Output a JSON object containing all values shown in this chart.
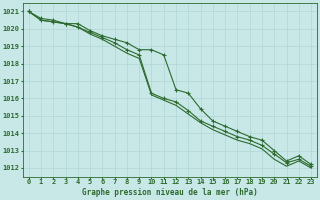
{
  "xlabel": "Graphe pression niveau de la mer (hPa)",
  "x_hours": [
    0,
    1,
    2,
    3,
    4,
    5,
    6,
    7,
    8,
    9,
    10,
    11,
    12,
    13,
    14,
    15,
    16,
    17,
    18,
    19,
    20,
    21,
    22,
    23
  ],
  "line1_y": [
    1021.0,
    1020.6,
    1020.5,
    1020.3,
    1020.3,
    1019.9,
    1019.6,
    1019.4,
    1019.2,
    1018.8,
    1018.8,
    1018.5,
    1016.5,
    1016.3,
    1015.4,
    1014.7,
    1014.4,
    1014.1,
    1013.8,
    1013.6,
    1013.0,
    1012.4,
    1012.7,
    1012.2
  ],
  "line2_y": [
    1021.0,
    1020.5,
    1020.4,
    1020.3,
    1020.1,
    1019.8,
    1019.5,
    1019.2,
    1018.8,
    1018.5,
    1016.3,
    1016.0,
    1015.8,
    1015.3,
    1014.7,
    1014.4,
    1014.1,
    1013.8,
    1013.6,
    1013.3,
    1012.8,
    1012.3,
    1012.5,
    1012.1
  ],
  "line3_y": [
    1021.0,
    1020.5,
    1020.4,
    1020.3,
    1020.1,
    1019.7,
    1019.4,
    1019.0,
    1018.6,
    1018.3,
    1016.2,
    1015.9,
    1015.6,
    1015.1,
    1014.6,
    1014.2,
    1013.9,
    1013.6,
    1013.4,
    1013.1,
    1012.5,
    1012.1,
    1012.4,
    1012.0
  ],
  "ylim_min": 1011.5,
  "ylim_max": 1021.5,
  "yticks": [
    1012,
    1013,
    1014,
    1015,
    1016,
    1017,
    1018,
    1019,
    1020,
    1021
  ],
  "line_color": "#2d6a2d",
  "bg_color": "#c8e8e8",
  "grid_color": "#b0d4d4",
  "linewidth": 0.8,
  "markersize": 3,
  "label_fontsize": 5.5,
  "tick_fontsize": 5
}
